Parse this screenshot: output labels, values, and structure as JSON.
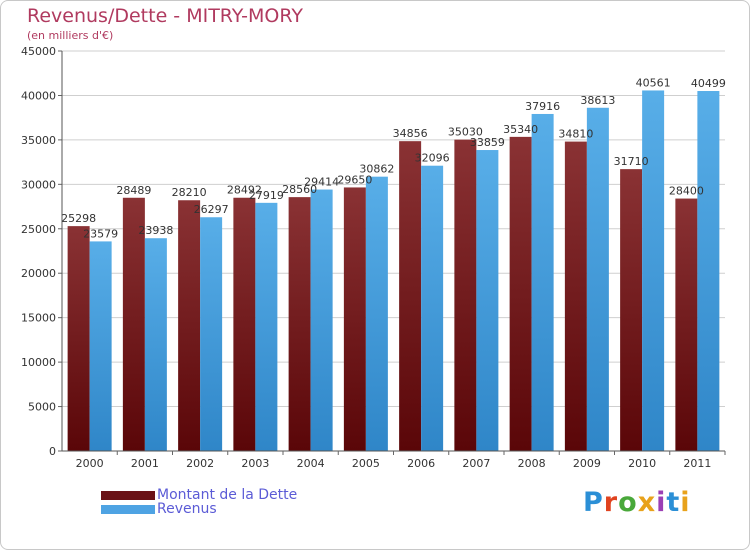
{
  "title": "Revenus/Dette - MITRY-MORY",
  "subtitle": "(en milliers d'€)",
  "logo_text": "Proxiti",
  "logo_colors": [
    "#2b8fd6",
    "#e0431f",
    "#49a83a",
    "#e8a21b",
    "#9b3fb5",
    "#2b8fd6",
    "#e8a21b"
  ],
  "chart_data": {
    "type": "bar",
    "categories": [
      "2000",
      "2001",
      "2002",
      "2003",
      "2004",
      "2005",
      "2006",
      "2007",
      "2008",
      "2009",
      "2010",
      "2011"
    ],
    "series": [
      {
        "name": "Montant de la Dette",
        "color": "#7a1e22",
        "values": [
          25298,
          28489,
          28210,
          28492,
          28560,
          29650,
          34856,
          35030,
          35340,
          34810,
          31710,
          28400
        ],
        "labels": [
          "25298",
          "28489",
          "28210",
          "28492",
          "28560",
          "29650",
          "34856",
          "35030",
          "35340",
          "34810",
          "31710",
          "28400"
        ]
      },
      {
        "name": "Revenus",
        "color": "#4ea3e3",
        "values": [
          23579,
          23938,
          26297,
          27919,
          29414,
          30862,
          32096,
          33859,
          37916,
          38613,
          40561,
          40499
        ],
        "labels": [
          "23579",
          "23938",
          "26297",
          "27919",
          "29414",
          "30862",
          "32096",
          "33859",
          "37916",
          "38613",
          "40561",
          "40499"
        ]
      }
    ],
    "ylim": [
      0,
      45000
    ],
    "yticks": [
      "0",
      "5000",
      "10000",
      "15000",
      "20000",
      "25000",
      "30000",
      "35000",
      "40000",
      "45000"
    ],
    "grid": true,
    "legend_position": "bottom-left"
  }
}
